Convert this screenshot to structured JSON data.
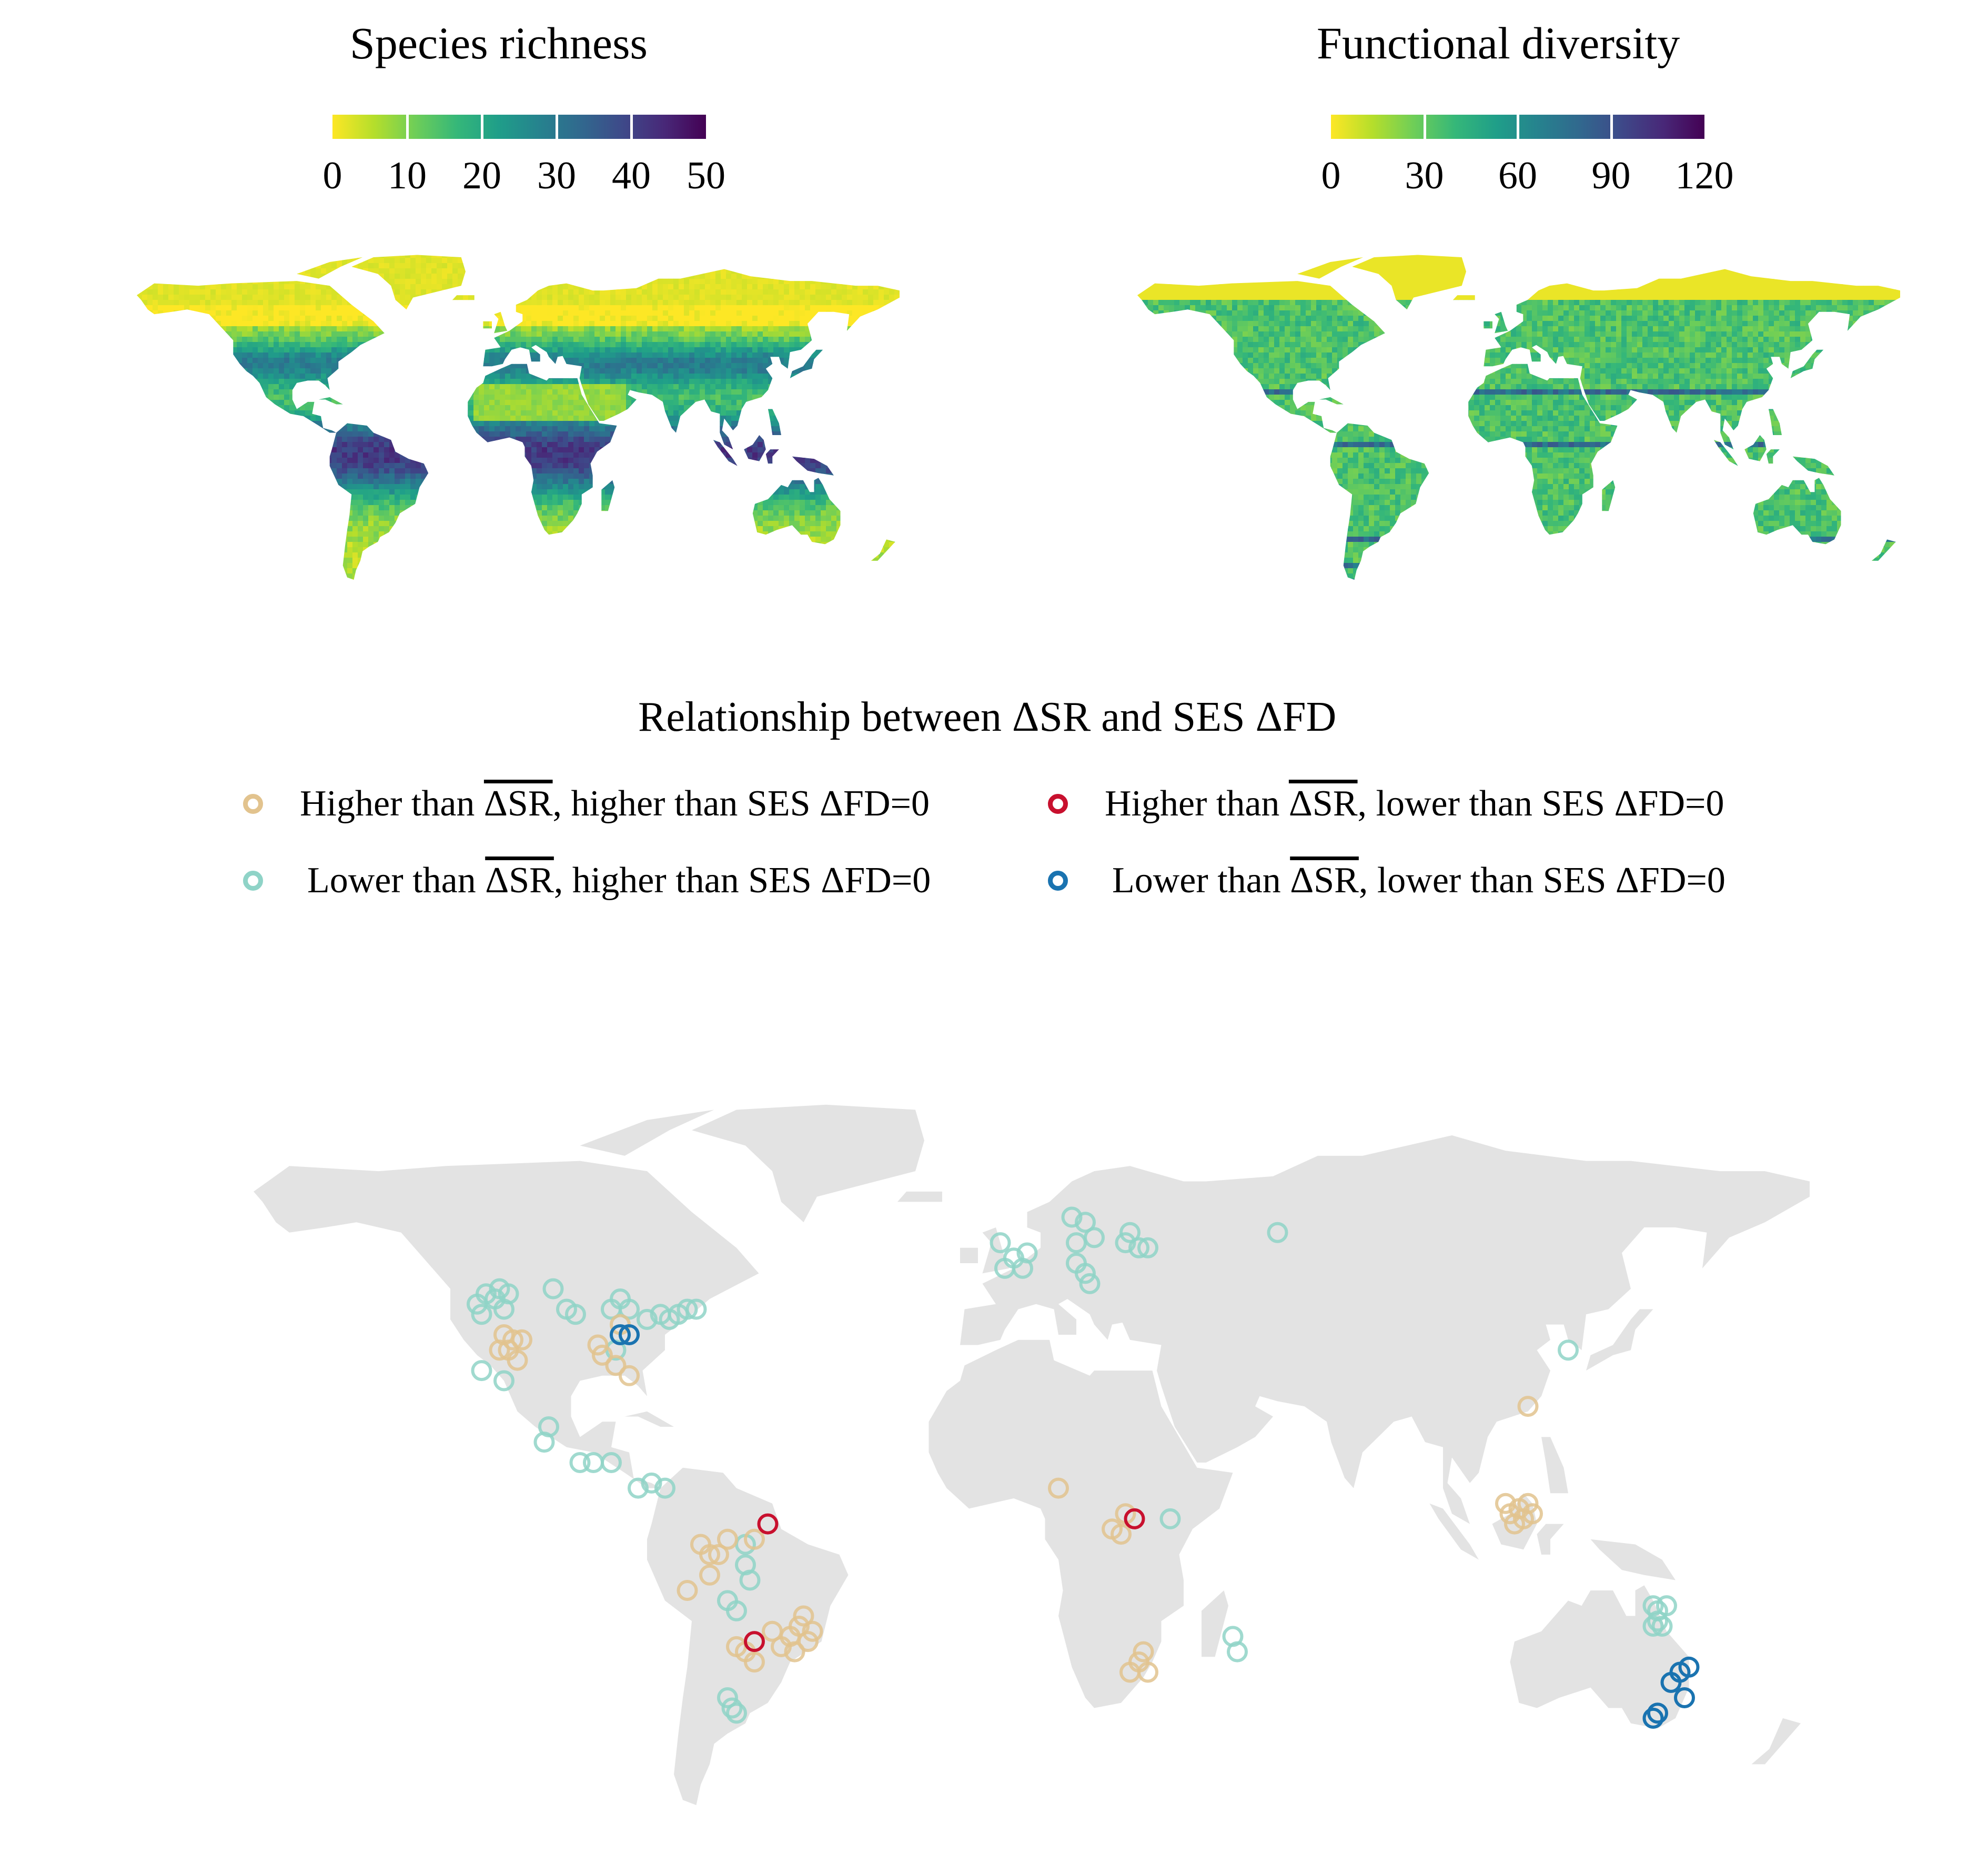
{
  "panels": {
    "species_richness": {
      "title": "Species richness",
      "colorbar_ticks": [
        "0",
        "10",
        "20",
        "30",
        "40",
        "50"
      ],
      "range": [
        0,
        50
      ],
      "palette": [
        "#fde725",
        "#b5de2b",
        "#6ece58",
        "#35b779",
        "#1f9e89",
        "#26828e",
        "#31688e",
        "#3e4989",
        "#482878",
        "#440154"
      ]
    },
    "functional_diversity": {
      "title": "Functional diversity",
      "colorbar_ticks": [
        "0",
        "30",
        "60",
        "90",
        "120"
      ],
      "range": [
        0,
        120
      ],
      "palette": [
        "#fde725",
        "#b5de2b",
        "#6ece58",
        "#35b779",
        "#1f9e89",
        "#26828e",
        "#31688e",
        "#3e4989",
        "#482878",
        "#440154"
      ]
    }
  },
  "legend": {
    "title": "Relationship between ΔSR and SES ΔFD",
    "items": [
      {
        "prefix": "Higher than ",
        "overline": "ΔSR",
        "suffix": ", higher than SES ΔFD=0",
        "color": "#e2c38e"
      },
      {
        "prefix": "Higher than ",
        "overline": "ΔSR",
        "suffix": ", lower than SES ΔFD=0",
        "color": "#c8102e"
      },
      {
        "prefix": "Lower than ",
        "overline": "ΔSR",
        "suffix": ", higher than SES ΔFD=0",
        "color": "#8fd3c7"
      },
      {
        "prefix": "Lower than ",
        "overline": "ΔSR",
        "suffix": ", lower than SES ΔFD=0",
        "color": "#1a73b0"
      }
    ]
  },
  "land_color": "#e3e3e3",
  "sites": [
    {
      "lon": -118,
      "lat": 44,
      "cat": 2
    },
    {
      "lon": -116,
      "lat": 46,
      "cat": 2
    },
    {
      "lon": -114,
      "lat": 45,
      "cat": 2
    },
    {
      "lon": -113,
      "lat": 47,
      "cat": 2
    },
    {
      "lon": -111,
      "lat": 46,
      "cat": 2
    },
    {
      "lon": -117,
      "lat": 42,
      "cat": 2
    },
    {
      "lon": -112,
      "lat": 43,
      "cat": 2
    },
    {
      "lon": -101,
      "lat": 47,
      "cat": 2
    },
    {
      "lon": -98,
      "lat": 43,
      "cat": 2
    },
    {
      "lon": -96,
      "lat": 42,
      "cat": 2
    },
    {
      "lon": -88,
      "lat": 43,
      "cat": 2
    },
    {
      "lon": -86,
      "lat": 45,
      "cat": 2
    },
    {
      "lon": -84,
      "lat": 43,
      "cat": 2
    },
    {
      "lon": -80,
      "lat": 41,
      "cat": 2
    },
    {
      "lon": -77,
      "lat": 42,
      "cat": 2
    },
    {
      "lon": -75,
      "lat": 41,
      "cat": 2
    },
    {
      "lon": -73,
      "lat": 42,
      "cat": 2
    },
    {
      "lon": -71,
      "lat": 43,
      "cat": 2
    },
    {
      "lon": -69,
      "lat": 43,
      "cat": 2
    },
    {
      "lon": -87,
      "lat": 35,
      "cat": 2
    },
    {
      "lon": -117,
      "lat": 31,
      "cat": 2
    },
    {
      "lon": -112,
      "lat": 29,
      "cat": 2
    },
    {
      "lon": -102,
      "lat": 20,
      "cat": 2
    },
    {
      "lon": -103,
      "lat": 17,
      "cat": 2
    },
    {
      "lon": -95,
      "lat": 13,
      "cat": 2
    },
    {
      "lon": -92,
      "lat": 13,
      "cat": 2
    },
    {
      "lon": -88,
      "lat": 13,
      "cat": 2
    },
    {
      "lon": -82,
      "lat": 8,
      "cat": 2
    },
    {
      "lon": -79,
      "lat": 9,
      "cat": 2
    },
    {
      "lon": -76,
      "lat": 8,
      "cat": 2
    },
    {
      "lon": -58,
      "lat": -3,
      "cat": 2
    },
    {
      "lon": -58,
      "lat": -7,
      "cat": 2
    },
    {
      "lon": -57,
      "lat": -10,
      "cat": 2
    },
    {
      "lon": -62,
      "lat": -14,
      "cat": 2
    },
    {
      "lon": -60,
      "lat": -16,
      "cat": 2
    },
    {
      "lon": -62,
      "lat": -33,
      "cat": 2
    },
    {
      "lon": -61,
      "lat": -35,
      "cat": 2
    },
    {
      "lon": -60,
      "lat": -36,
      "cat": 2
    },
    {
      "lon": -1,
      "lat": 56,
      "cat": 2
    },
    {
      "lon": 2,
      "lat": 53,
      "cat": 2
    },
    {
      "lon": 5,
      "lat": 54,
      "cat": 2
    },
    {
      "lon": 0,
      "lat": 51,
      "cat": 2
    },
    {
      "lon": 4,
      "lat": 51,
      "cat": 2
    },
    {
      "lon": 15,
      "lat": 61,
      "cat": 2
    },
    {
      "lon": 18,
      "lat": 60,
      "cat": 2
    },
    {
      "lon": 16,
      "lat": 56,
      "cat": 2
    },
    {
      "lon": 20,
      "lat": 57,
      "cat": 2
    },
    {
      "lon": 16,
      "lat": 52,
      "cat": 2
    },
    {
      "lon": 18,
      "lat": 50,
      "cat": 2
    },
    {
      "lon": 19,
      "lat": 48,
      "cat": 2
    },
    {
      "lon": 27,
      "lat": 56,
      "cat": 2
    },
    {
      "lon": 30,
      "lat": 55,
      "cat": 2
    },
    {
      "lon": 28,
      "lat": 58,
      "cat": 2
    },
    {
      "lon": 32,
      "lat": 55,
      "cat": 2
    },
    {
      "lon": 61,
      "lat": 58,
      "cat": 2
    },
    {
      "lon": 37,
      "lat": 2,
      "cat": 2
    },
    {
      "lon": 51,
      "lat": -21,
      "cat": 2
    },
    {
      "lon": 52,
      "lat": -24,
      "cat": 2
    },
    {
      "lon": 126,
      "lat": 35,
      "cat": 2
    },
    {
      "lon": 145,
      "lat": -15,
      "cat": 2
    },
    {
      "lon": 146,
      "lat": -16,
      "cat": 2
    },
    {
      "lon": 148,
      "lat": -15,
      "cat": 2
    },
    {
      "lon": 146,
      "lat": -18,
      "cat": 2
    },
    {
      "lon": 145,
      "lat": -19,
      "cat": 2
    },
    {
      "lon": 147,
      "lat": -19,
      "cat": 2
    },
    {
      "lon": 145,
      "lat": -37,
      "cat": 2
    },
    {
      "lon": -112,
      "lat": 38,
      "cat": 0
    },
    {
      "lon": -110,
      "lat": 37,
      "cat": 0
    },
    {
      "lon": -108,
      "lat": 37,
      "cat": 0
    },
    {
      "lon": -111,
      "lat": 35,
      "cat": 0
    },
    {
      "lon": -113,
      "lat": 35,
      "cat": 0
    },
    {
      "lon": -109,
      "lat": 33,
      "cat": 0
    },
    {
      "lon": -91,
      "lat": 36,
      "cat": 0
    },
    {
      "lon": -90,
      "lat": 34,
      "cat": 0
    },
    {
      "lon": -87,
      "lat": 32,
      "cat": 0
    },
    {
      "lon": -84,
      "lat": 30,
      "cat": 0
    },
    {
      "lon": -86,
      "lat": 40,
      "cat": 0
    },
    {
      "lon": -68,
      "lat": -3,
      "cat": 0
    },
    {
      "lon": -66,
      "lat": -5,
      "cat": 0
    },
    {
      "lon": -64,
      "lat": -5,
      "cat": 0
    },
    {
      "lon": -66,
      "lat": -9,
      "cat": 0
    },
    {
      "lon": -71,
      "lat": -12,
      "cat": 0
    },
    {
      "lon": -62,
      "lat": -2,
      "cat": 0
    },
    {
      "lon": -56,
      "lat": -2,
      "cat": 0
    },
    {
      "lon": -46,
      "lat": -19,
      "cat": 0
    },
    {
      "lon": -48,
      "lat": -21,
      "cat": 0
    },
    {
      "lon": -44,
      "lat": -22,
      "cat": 0
    },
    {
      "lon": -50,
      "lat": -23,
      "cat": 0
    },
    {
      "lon": -52,
      "lat": -20,
      "cat": 0
    },
    {
      "lon": -47,
      "lat": -24,
      "cat": 0
    },
    {
      "lon": -43,
      "lat": -20,
      "cat": 0
    },
    {
      "lon": -58,
      "lat": -24,
      "cat": 0
    },
    {
      "lon": -60,
      "lat": -23,
      "cat": 0
    },
    {
      "lon": -56,
      "lat": -26,
      "cat": 0
    },
    {
      "lon": -45,
      "lat": -17,
      "cat": 0
    },
    {
      "lon": 12,
      "lat": 8,
      "cat": 0
    },
    {
      "lon": 27,
      "lat": 3,
      "cat": 0
    },
    {
      "lon": 24,
      "lat": 0,
      "cat": 0
    },
    {
      "lon": 26,
      "lat": -1,
      "cat": 0
    },
    {
      "lon": 31,
      "lat": -24,
      "cat": 0
    },
    {
      "lon": 30,
      "lat": -26,
      "cat": 0
    },
    {
      "lon": 28,
      "lat": -28,
      "cat": 0
    },
    {
      "lon": 32,
      "lat": -28,
      "cat": 0
    },
    {
      "lon": 117,
      "lat": 24,
      "cat": 0
    },
    {
      "lon": 113,
      "lat": 3,
      "cat": 0
    },
    {
      "lon": 115,
      "lat": 4,
      "cat": 0
    },
    {
      "lon": 117,
      "lat": 5,
      "cat": 0
    },
    {
      "lon": 114,
      "lat": 1,
      "cat": 0
    },
    {
      "lon": 116,
      "lat": 2,
      "cat": 0
    },
    {
      "lon": 118,
      "lat": 3,
      "cat": 0
    },
    {
      "lon": 112,
      "lat": 5,
      "cat": 0
    },
    {
      "lon": -53,
      "lat": 1,
      "cat": 1
    },
    {
      "lon": -56,
      "lat": -22,
      "cat": 1
    },
    {
      "lon": 29,
      "lat": 2,
      "cat": 1
    },
    {
      "lon": -86,
      "lat": 38,
      "cat": 3
    },
    {
      "lon": -84,
      "lat": 38,
      "cat": 3
    },
    {
      "lon": 153,
      "lat": -27,
      "cat": 3
    },
    {
      "lon": 151,
      "lat": -28,
      "cat": 3
    },
    {
      "lon": 149,
      "lat": -30,
      "cat": 3
    },
    {
      "lon": 152,
      "lat": -33,
      "cat": 3
    },
    {
      "lon": 146,
      "lat": -36,
      "cat": 3
    },
    {
      "lon": 145,
      "lat": -37,
      "cat": 3
    }
  ]
}
